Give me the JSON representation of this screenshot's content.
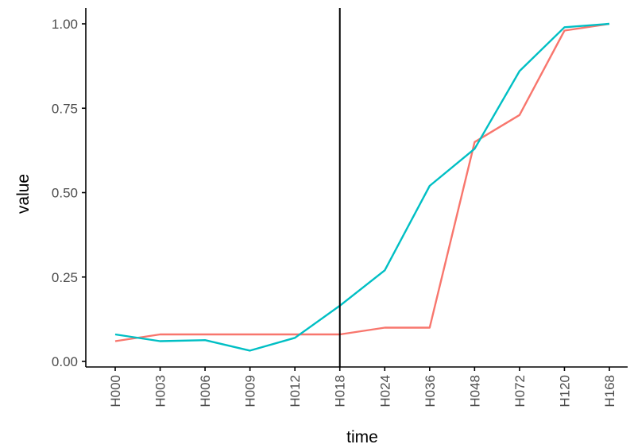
{
  "chart_data": {
    "type": "line",
    "xlabel": "time",
    "ylabel": "value",
    "categories": [
      "H000",
      "H003",
      "H006",
      "H009",
      "H012",
      "H018",
      "H024",
      "H036",
      "H048",
      "H072",
      "H120",
      "H168"
    ],
    "ylim": [
      0,
      1
    ],
    "yticks": [
      "0.00",
      "0.25",
      "0.50",
      "0.75",
      "1.00"
    ],
    "ytick_values": [
      0,
      0.25,
      0.5,
      0.75,
      1.0
    ],
    "vline_category": "H018",
    "grid": false,
    "legend": "none",
    "series": [
      {
        "color": "#F8766D",
        "values": [
          0.06,
          0.08,
          0.08,
          0.08,
          0.08,
          0.08,
          0.1,
          0.1,
          0.65,
          0.73,
          0.98,
          1.0
        ]
      },
      {
        "color": "#00BFC4",
        "values": [
          0.08,
          0.06,
          0.063,
          0.032,
          0.07,
          0.165,
          0.27,
          0.52,
          0.63,
          0.86,
          0.99,
          1.0
        ]
      }
    ]
  }
}
